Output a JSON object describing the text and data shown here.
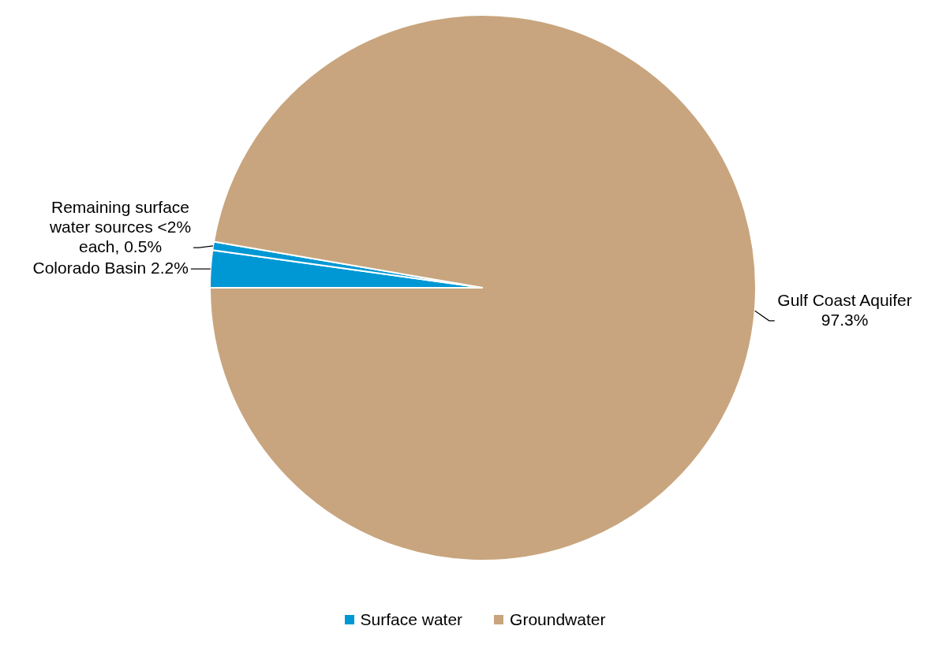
{
  "chart_data": {
    "type": "pie",
    "categories": [
      "Colorado Basin",
      "Remaining surface water sources <2% each",
      "Gulf Coast Aquifer"
    ],
    "values": [
      2.2,
      0.5,
      97.3
    ],
    "colors": [
      "#0098d4",
      "#0098d4",
      "#c8a57e"
    ],
    "value_labels": [
      "2.2%",
      "0.5%",
      "97.3%"
    ],
    "annotations": [
      "Surface water",
      "Groundwater"
    ]
  }
}
